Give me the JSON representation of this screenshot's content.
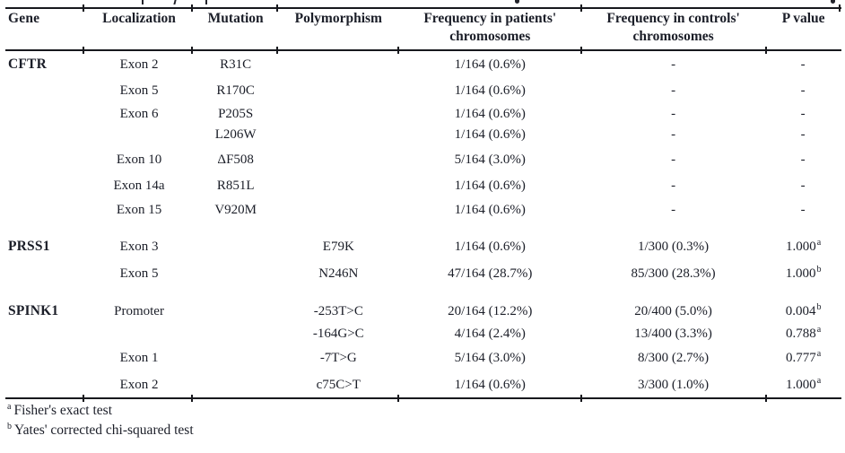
{
  "table": {
    "columns": [
      "Gene",
      "Localization",
      "Mutation",
      "Polymorphism",
      "Frequency in patients' chromosomes",
      "Frequency in controls' chromosomes",
      "P value"
    ],
    "rows": [
      {
        "gene": "CFTR",
        "localization": "Exon 2",
        "mutation": "R31C",
        "polymorphism": "",
        "freq_patients": "1/164 (0.6%)",
        "freq_controls": "-",
        "p_value": "-",
        "p_sup": ""
      },
      {
        "gene": "",
        "localization": "Exon 5",
        "mutation": "R170C",
        "polymorphism": "",
        "freq_patients": "1/164 (0.6%)",
        "freq_controls": "-",
        "p_value": "-",
        "p_sup": ""
      },
      {
        "gene": "",
        "localization": "Exon 6",
        "mutation": "P205S",
        "polymorphism": "",
        "freq_patients": "1/164 (0.6%)",
        "freq_controls": "-",
        "p_value": "-",
        "p_sup": ""
      },
      {
        "gene": "",
        "localization": "",
        "mutation": "L206W",
        "polymorphism": "",
        "freq_patients": "1/164 (0.6%)",
        "freq_controls": "-",
        "p_value": "-",
        "p_sup": ""
      },
      {
        "gene": "",
        "localization": "Exon 10",
        "mutation": "ΔF508",
        "polymorphism": "",
        "freq_patients": "5/164 (3.0%)",
        "freq_controls": "-",
        "p_value": "-",
        "p_sup": ""
      },
      {
        "gene": "",
        "localization": "Exon 14a",
        "mutation": "R851L",
        "polymorphism": "",
        "freq_patients": "1/164 (0.6%)",
        "freq_controls": "-",
        "p_value": "-",
        "p_sup": ""
      },
      {
        "gene": "",
        "localization": "Exon 15",
        "mutation": "V920M",
        "polymorphism": "",
        "freq_patients": "1/164 (0.6%)",
        "freq_controls": "-",
        "p_value": "-",
        "p_sup": ""
      },
      {
        "gene": "PRSS1",
        "localization": "Exon 3",
        "mutation": "",
        "polymorphism": "E79K",
        "freq_patients": "1/164 (0.6%)",
        "freq_controls": "1/300 (0.3%)",
        "p_value": "1.000",
        "p_sup": "a"
      },
      {
        "gene": "",
        "localization": "Exon 5",
        "mutation": "",
        "polymorphism": "N246N",
        "freq_patients": "47/164 (28.7%)",
        "freq_controls": "85/300 (28.3%)",
        "p_value": "1.000",
        "p_sup": "b"
      },
      {
        "gene": "SPINK1",
        "localization": "Promoter",
        "mutation": "",
        "polymorphism": "-253T>C",
        "freq_patients": "20/164 (12.2%)",
        "freq_controls": "20/400 (5.0%)",
        "p_value": "0.004",
        "p_sup": "b"
      },
      {
        "gene": "",
        "localization": "",
        "mutation": "",
        "polymorphism": "-164G>C",
        "freq_patients": "4/164 (2.4%)",
        "freq_controls": "13/400 (3.3%)",
        "p_value": "0.788",
        "p_sup": "a"
      },
      {
        "gene": "",
        "localization": "Exon 1",
        "mutation": "",
        "polymorphism": "-7T>G",
        "freq_patients": "5/164 (3.0%)",
        "freq_controls": "8/300 (2.7%)",
        "p_value": "0.777",
        "p_sup": "a"
      },
      {
        "gene": "",
        "localization": "Exon 2",
        "mutation": "",
        "polymorphism": "c75C>T",
        "freq_patients": "1/164 (0.6%)",
        "freq_controls": "3/300 (1.0%)",
        "p_value": "1.000",
        "p_sup": "a"
      }
    ]
  },
  "footnotes": [
    {
      "marker": "a",
      "text": "Fisher's exact test"
    },
    {
      "marker": "b",
      "text": "Yates' corrected chi-squared test"
    }
  ],
  "colors": {
    "text": "#1b1e28",
    "rule": "#17181d",
    "background": "#ffffff"
  }
}
